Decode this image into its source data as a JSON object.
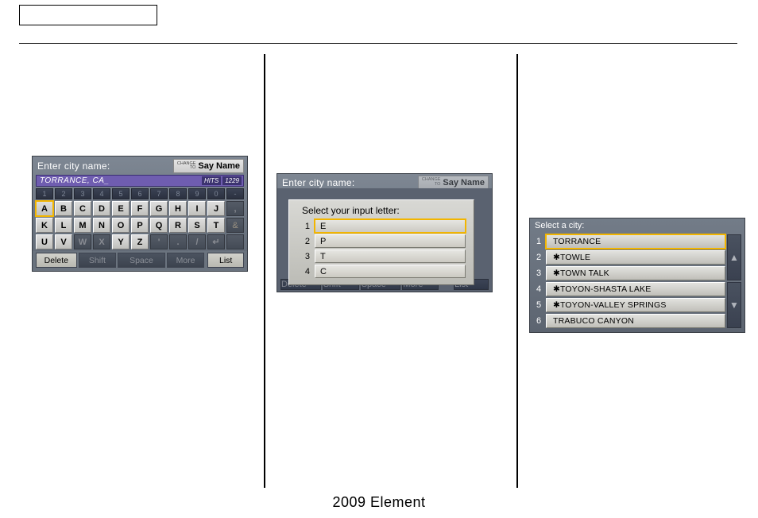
{
  "footer": "2009  Element",
  "kb1": {
    "title": "Enter city name:",
    "say_change": "CHANGE\nTO",
    "say_big": "Say Name",
    "field_text": "TORRANCE, CA_",
    "hits_label": "HITS",
    "hits_value": "1229",
    "num_row": [
      "1",
      "2",
      "3",
      "4",
      "5",
      "6",
      "7",
      "8",
      "9",
      "0",
      "-"
    ],
    "row1": [
      "A",
      "B",
      "C",
      "D",
      "E",
      "F",
      "G",
      "H",
      "I",
      "J",
      ","
    ],
    "row2": [
      "K",
      "L",
      "M",
      "N",
      "O",
      "P",
      "Q",
      "R",
      "S",
      "T",
      "&"
    ],
    "row3": [
      "U",
      "V",
      "W",
      "X",
      "Y",
      "Z",
      "'",
      ".",
      "/",
      "↵"
    ],
    "btn_delete": "Delete",
    "btn_shift": "Shift",
    "btn_space": "Space",
    "btn_more": "More",
    "btn_list": "List",
    "disabled_keys": [
      "X"
    ],
    "selected_key": "A"
  },
  "kb2": {
    "title": "Enter city name:",
    "popup_title": "Select your input letter:",
    "options": [
      "E",
      "P",
      "T",
      "C"
    ],
    "selected_index": 0,
    "btn_delete": "Delete",
    "btn_shift": "Shift",
    "btn_space": "Space",
    "btn_more": "More",
    "btn_list": "List"
  },
  "citylist": {
    "title": "Select a city:",
    "items": [
      "TORRANCE",
      "✱TOWLE",
      "✱TOWN TALK",
      "✱TOYON-SHASTA LAKE",
      "✱TOYON-VALLEY SPRINGS",
      "TRABUCO CANYON"
    ],
    "selected_index": 0
  }
}
